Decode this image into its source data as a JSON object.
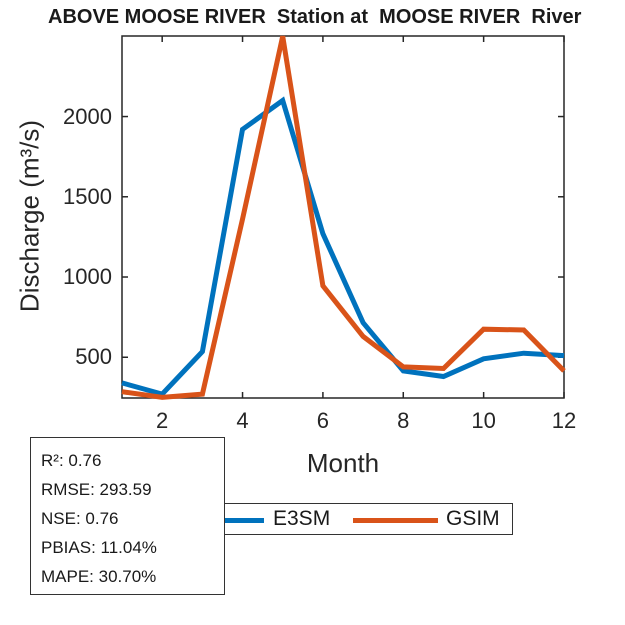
{
  "title": "ABOVE MOOSE RIVER  Station at  MOOSE RIVER  River",
  "chart_data": {
    "type": "line",
    "title": "ABOVE MOOSE RIVER  Station at  MOOSE RIVER  River",
    "xlabel": "Month",
    "ylabel": "Discharge (m³/s)",
    "x": [
      1,
      2,
      3,
      4,
      5,
      6,
      7,
      8,
      9,
      10,
      11,
      12
    ],
    "series": [
      {
        "name": "E3SM",
        "color": "#0072BD",
        "values": [
          340,
          270,
          535,
          1920,
          2100,
          1270,
          715,
          415,
          380,
          490,
          525,
          510
        ]
      },
      {
        "name": "GSIM",
        "color": "#D95319",
        "values": [
          285,
          250,
          270,
          1360,
          2500,
          945,
          630,
          440,
          430,
          675,
          670,
          415
        ]
      }
    ],
    "xlim": [
      1,
      12
    ],
    "ylim": [
      246,
      2502
    ],
    "xticks": [
      2,
      4,
      6,
      8,
      10,
      12
    ],
    "yticks": [
      500,
      1000,
      1500,
      2000
    ],
    "grid": false,
    "legend_position": "below-plot-horizontal"
  },
  "legend": {
    "items": [
      {
        "label": "E3SM",
        "color": "#0072BD"
      },
      {
        "label": "GSIM",
        "color": "#D95319"
      }
    ]
  },
  "stats_box": {
    "lines": [
      "R²: 0.76",
      "RMSE: 293.59",
      "NSE: 0.76",
      "PBIAS: 11.04%",
      "MAPE: 30.70%"
    ]
  },
  "colors": {
    "axis": "#262626",
    "e3sm": "#0072BD",
    "gsim": "#D95319",
    "background": "#ffffff"
  }
}
